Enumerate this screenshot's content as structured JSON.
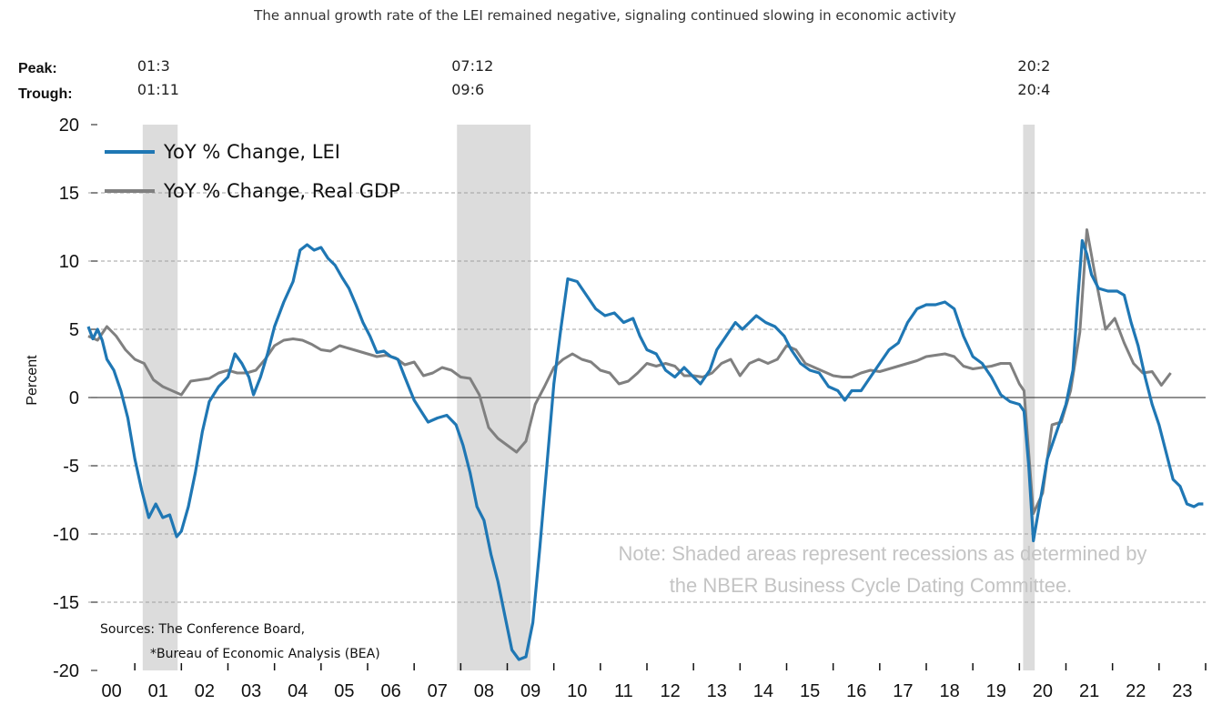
{
  "chart_data": {
    "type": "line",
    "title": "The annual growth rate of the LEI remained negative, signaling continued slowing in economic activity",
    "ylabel": "Percent",
    "xlabel": "",
    "ylim": [
      -20,
      20
    ],
    "xlim": [
      2000.0,
      2024.0
    ],
    "yticks": [
      20,
      15,
      10,
      5,
      0,
      -5,
      -10,
      -15,
      -20
    ],
    "xtick_labels": [
      "00",
      "01",
      "02",
      "03",
      "04",
      "05",
      "06",
      "07",
      "08",
      "09",
      "10",
      "11",
      "12",
      "13",
      "14",
      "15",
      "16",
      "17",
      "18",
      "19",
      "20",
      "21",
      "22",
      "23"
    ],
    "grid": "horizontal dashed",
    "legend_position": "top-left",
    "colors": {
      "lei": "#1f77b4",
      "gdp": "#808080",
      "recession": "#dcdcdc"
    },
    "peak_label": "Peak:",
    "trough_label": "Trough:",
    "recessions": [
      {
        "peak": "01:3",
        "trough": "01:11",
        "start": 2001.17,
        "end": 2001.92
      },
      {
        "peak": "07:12",
        "trough": "09:6",
        "start": 2007.92,
        "end": 2009.5
      },
      {
        "peak": "20:2",
        "trough": "20:4",
        "start": 2020.08,
        "end": 2020.33
      }
    ],
    "series": [
      {
        "name": "YoY % Change, LEI",
        "key": "lei",
        "points": [
          [
            2000.0,
            5.2
          ],
          [
            2000.1,
            4.3
          ],
          [
            2000.2,
            5.0
          ],
          [
            2000.3,
            4.2
          ],
          [
            2000.4,
            2.8
          ],
          [
            2000.55,
            2.0
          ],
          [
            2000.7,
            0.5
          ],
          [
            2000.85,
            -1.5
          ],
          [
            2001.0,
            -4.5
          ],
          [
            2001.15,
            -6.8
          ],
          [
            2001.3,
            -8.8
          ],
          [
            2001.45,
            -7.8
          ],
          [
            2001.6,
            -8.8
          ],
          [
            2001.75,
            -8.6
          ],
          [
            2001.9,
            -10.2
          ],
          [
            2002.0,
            -9.8
          ],
          [
            2002.15,
            -8.0
          ],
          [
            2002.3,
            -5.5
          ],
          [
            2002.45,
            -2.5
          ],
          [
            2002.6,
            -0.3
          ],
          [
            2002.8,
            0.8
          ],
          [
            2003.0,
            1.5
          ],
          [
            2003.15,
            3.2
          ],
          [
            2003.3,
            2.5
          ],
          [
            2003.45,
            1.5
          ],
          [
            2003.55,
            0.2
          ],
          [
            2003.7,
            1.5
          ],
          [
            2003.85,
            3.2
          ],
          [
            2004.0,
            5.2
          ],
          [
            2004.2,
            7.0
          ],
          [
            2004.4,
            8.5
          ],
          [
            2004.55,
            10.8
          ],
          [
            2004.7,
            11.2
          ],
          [
            2004.85,
            10.8
          ],
          [
            2005.0,
            11.0
          ],
          [
            2005.15,
            10.2
          ],
          [
            2005.3,
            9.7
          ],
          [
            2005.45,
            8.8
          ],
          [
            2005.6,
            8.0
          ],
          [
            2005.75,
            6.8
          ],
          [
            2005.9,
            5.5
          ],
          [
            2006.05,
            4.5
          ],
          [
            2006.2,
            3.3
          ],
          [
            2006.35,
            3.4
          ],
          [
            2006.5,
            3.0
          ],
          [
            2006.65,
            2.8
          ],
          [
            2006.8,
            1.5
          ],
          [
            2007.0,
            -0.2
          ],
          [
            2007.15,
            -1.0
          ],
          [
            2007.3,
            -1.8
          ],
          [
            2007.5,
            -1.5
          ],
          [
            2007.7,
            -1.3
          ],
          [
            2007.9,
            -2.0
          ],
          [
            2008.05,
            -3.5
          ],
          [
            2008.2,
            -5.5
          ],
          [
            2008.35,
            -8.0
          ],
          [
            2008.5,
            -9.0
          ],
          [
            2008.65,
            -11.5
          ],
          [
            2008.8,
            -13.5
          ],
          [
            2008.95,
            -16.0
          ],
          [
            2009.1,
            -18.5
          ],
          [
            2009.25,
            -19.2
          ],
          [
            2009.4,
            -19.0
          ],
          [
            2009.55,
            -16.5
          ],
          [
            2009.7,
            -11.0
          ],
          [
            2009.85,
            -5.0
          ],
          [
            2010.0,
            1.0
          ],
          [
            2010.15,
            5.0
          ],
          [
            2010.3,
            8.7
          ],
          [
            2010.5,
            8.5
          ],
          [
            2010.7,
            7.5
          ],
          [
            2010.9,
            6.5
          ],
          [
            2011.1,
            6.0
          ],
          [
            2011.3,
            6.2
          ],
          [
            2011.5,
            5.5
          ],
          [
            2011.7,
            5.8
          ],
          [
            2011.85,
            4.5
          ],
          [
            2012.0,
            3.5
          ],
          [
            2012.2,
            3.2
          ],
          [
            2012.4,
            2.0
          ],
          [
            2012.6,
            1.5
          ],
          [
            2012.8,
            2.2
          ],
          [
            2013.0,
            1.5
          ],
          [
            2013.15,
            1.0
          ],
          [
            2013.35,
            2.0
          ],
          [
            2013.5,
            3.5
          ],
          [
            2013.7,
            4.5
          ],
          [
            2013.9,
            5.5
          ],
          [
            2014.05,
            5.0
          ],
          [
            2014.2,
            5.5
          ],
          [
            2014.35,
            6.0
          ],
          [
            2014.55,
            5.5
          ],
          [
            2014.75,
            5.2
          ],
          [
            2014.95,
            4.5
          ],
          [
            2015.1,
            3.5
          ],
          [
            2015.3,
            2.5
          ],
          [
            2015.5,
            2.0
          ],
          [
            2015.7,
            1.8
          ],
          [
            2015.9,
            0.8
          ],
          [
            2016.1,
            0.5
          ],
          [
            2016.25,
            -0.2
          ],
          [
            2016.4,
            0.5
          ],
          [
            2016.6,
            0.5
          ],
          [
            2016.8,
            1.5
          ],
          [
            2017.0,
            2.5
          ],
          [
            2017.2,
            3.5
          ],
          [
            2017.4,
            4.0
          ],
          [
            2017.6,
            5.5
          ],
          [
            2017.8,
            6.5
          ],
          [
            2018.0,
            6.8
          ],
          [
            2018.2,
            6.8
          ],
          [
            2018.4,
            7.0
          ],
          [
            2018.6,
            6.5
          ],
          [
            2018.8,
            4.5
          ],
          [
            2019.0,
            3.0
          ],
          [
            2019.2,
            2.5
          ],
          [
            2019.4,
            1.5
          ],
          [
            2019.6,
            0.2
          ],
          [
            2019.8,
            -0.3
          ],
          [
            2020.0,
            -0.5
          ],
          [
            2020.1,
            -1.0
          ],
          [
            2020.2,
            -5.0
          ],
          [
            2020.3,
            -10.5
          ],
          [
            2020.45,
            -7.5
          ],
          [
            2020.6,
            -4.5
          ],
          [
            2020.8,
            -2.5
          ],
          [
            2021.0,
            -0.5
          ],
          [
            2021.15,
            2.0
          ],
          [
            2021.25,
            7.0
          ],
          [
            2021.35,
            11.5
          ],
          [
            2021.45,
            10.5
          ],
          [
            2021.55,
            9.0
          ],
          [
            2021.7,
            8.0
          ],
          [
            2021.9,
            7.8
          ],
          [
            2022.1,
            7.8
          ],
          [
            2022.25,
            7.5
          ],
          [
            2022.4,
            5.5
          ],
          [
            2022.55,
            3.8
          ],
          [
            2022.7,
            1.5
          ],
          [
            2022.85,
            -0.5
          ],
          [
            2023.0,
            -2.0
          ],
          [
            2023.15,
            -4.0
          ],
          [
            2023.3,
            -6.0
          ],
          [
            2023.45,
            -6.5
          ],
          [
            2023.6,
            -7.8
          ],
          [
            2023.75,
            -8.0
          ],
          [
            2023.85,
            -7.8
          ],
          [
            2023.95,
            -7.8
          ]
        ]
      },
      {
        "name": "YoY % Change, Real GDP",
        "key": "gdp",
        "points": [
          [
            2000.0,
            4.5
          ],
          [
            2000.2,
            4.2
          ],
          [
            2000.4,
            5.2
          ],
          [
            2000.6,
            4.5
          ],
          [
            2000.8,
            3.5
          ],
          [
            2001.0,
            2.8
          ],
          [
            2001.2,
            2.5
          ],
          [
            2001.4,
            1.3
          ],
          [
            2001.6,
            0.8
          ],
          [
            2001.8,
            0.5
          ],
          [
            2002.0,
            0.2
          ],
          [
            2002.2,
            1.2
          ],
          [
            2002.4,
            1.3
          ],
          [
            2002.6,
            1.4
          ],
          [
            2002.8,
            1.8
          ],
          [
            2003.0,
            2.0
          ],
          [
            2003.2,
            1.8
          ],
          [
            2003.4,
            1.8
          ],
          [
            2003.6,
            2.0
          ],
          [
            2003.8,
            2.8
          ],
          [
            2004.0,
            3.8
          ],
          [
            2004.2,
            4.2
          ],
          [
            2004.4,
            4.3
          ],
          [
            2004.6,
            4.2
          ],
          [
            2004.8,
            3.9
          ],
          [
            2005.0,
            3.5
          ],
          [
            2005.2,
            3.4
          ],
          [
            2005.4,
            3.8
          ],
          [
            2005.6,
            3.6
          ],
          [
            2005.8,
            3.4
          ],
          [
            2006.0,
            3.2
          ],
          [
            2006.2,
            3.0
          ],
          [
            2006.4,
            3.1
          ],
          [
            2006.6,
            2.9
          ],
          [
            2006.8,
            2.4
          ],
          [
            2007.0,
            2.6
          ],
          [
            2007.2,
            1.6
          ],
          [
            2007.4,
            1.8
          ],
          [
            2007.6,
            2.2
          ],
          [
            2007.8,
            2.0
          ],
          [
            2008.0,
            1.5
          ],
          [
            2008.2,
            1.4
          ],
          [
            2008.4,
            0.2
          ],
          [
            2008.6,
            -2.2
          ],
          [
            2008.8,
            -3.0
          ],
          [
            2009.0,
            -3.5
          ],
          [
            2009.2,
            -4.0
          ],
          [
            2009.4,
            -3.2
          ],
          [
            2009.6,
            -0.5
          ],
          [
            2009.8,
            0.8
          ],
          [
            2010.0,
            2.2
          ],
          [
            2010.2,
            2.8
          ],
          [
            2010.4,
            3.2
          ],
          [
            2010.6,
            2.8
          ],
          [
            2010.8,
            2.6
          ],
          [
            2011.0,
            2.0
          ],
          [
            2011.2,
            1.8
          ],
          [
            2011.4,
            1.0
          ],
          [
            2011.6,
            1.2
          ],
          [
            2011.8,
            1.8
          ],
          [
            2012.0,
            2.5
          ],
          [
            2012.2,
            2.3
          ],
          [
            2012.4,
            2.5
          ],
          [
            2012.6,
            2.3
          ],
          [
            2012.8,
            1.6
          ],
          [
            2013.0,
            1.6
          ],
          [
            2013.2,
            1.5
          ],
          [
            2013.4,
            1.8
          ],
          [
            2013.6,
            2.5
          ],
          [
            2013.8,
            2.8
          ],
          [
            2014.0,
            1.6
          ],
          [
            2014.2,
            2.5
          ],
          [
            2014.4,
            2.8
          ],
          [
            2014.6,
            2.5
          ],
          [
            2014.8,
            2.8
          ],
          [
            2015.0,
            3.8
          ],
          [
            2015.2,
            3.5
          ],
          [
            2015.4,
            2.5
          ],
          [
            2015.6,
            2.2
          ],
          [
            2015.8,
            1.9
          ],
          [
            2016.0,
            1.6
          ],
          [
            2016.2,
            1.5
          ],
          [
            2016.4,
            1.5
          ],
          [
            2016.6,
            1.8
          ],
          [
            2016.8,
            2.0
          ],
          [
            2017.0,
            1.9
          ],
          [
            2017.2,
            2.1
          ],
          [
            2017.4,
            2.3
          ],
          [
            2017.6,
            2.5
          ],
          [
            2017.8,
            2.7
          ],
          [
            2018.0,
            3.0
          ],
          [
            2018.2,
            3.1
          ],
          [
            2018.4,
            3.2
          ],
          [
            2018.6,
            3.0
          ],
          [
            2018.8,
            2.3
          ],
          [
            2019.0,
            2.1
          ],
          [
            2019.2,
            2.2
          ],
          [
            2019.4,
            2.3
          ],
          [
            2019.6,
            2.5
          ],
          [
            2019.8,
            2.5
          ],
          [
            2020.0,
            1.0
          ],
          [
            2020.1,
            0.5
          ],
          [
            2020.3,
            -8.5
          ],
          [
            2020.5,
            -7.0
          ],
          [
            2020.7,
            -2.0
          ],
          [
            2020.9,
            -1.8
          ],
          [
            2021.1,
            0.5
          ],
          [
            2021.3,
            4.8
          ],
          [
            2021.45,
            12.3
          ],
          [
            2021.65,
            8.5
          ],
          [
            2021.85,
            5.0
          ],
          [
            2022.05,
            5.8
          ],
          [
            2022.25,
            4.0
          ],
          [
            2022.45,
            2.5
          ],
          [
            2022.65,
            1.8
          ],
          [
            2022.85,
            1.9
          ],
          [
            2023.05,
            0.9
          ],
          [
            2023.25,
            1.8
          ]
        ]
      }
    ],
    "note_lines": [
      "Note: Shaded areas represent recessions as determined by",
      "the NBER Business Cycle Dating Committee."
    ],
    "source_lines": [
      "Sources: The Conference Board,",
      "*Bureau of Economic Analysis (BEA)"
    ]
  }
}
